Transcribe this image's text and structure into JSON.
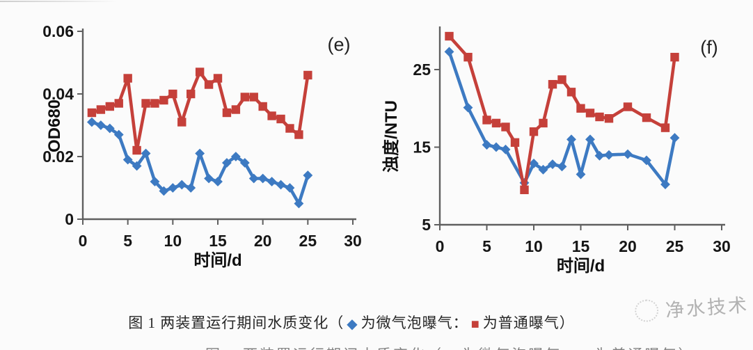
{
  "caption": {
    "prefix": "图 1 两装置运行期间水质变化（",
    "diamond_marker": "◆",
    "micro_label": "为微气泡曝气：",
    "square_marker": "■",
    "normal_label": "为普通曝气）"
  },
  "watermark": {
    "text": "净水技术"
  },
  "colors": {
    "micro_bubble_blue": "#3d7ac2",
    "normal_aeration_red": "#c5403a"
  },
  "chart_data": [
    {
      "type": "line",
      "panel_label": "(e)",
      "xlabel": "时间/d",
      "ylabel": "OD680",
      "xlim": [
        0,
        30
      ],
      "ylim": [
        0,
        0.06
      ],
      "xticks": [
        0,
        5,
        10,
        15,
        20,
        25,
        30
      ],
      "yticks": [
        0,
        0.02,
        0.04,
        0.06
      ],
      "ytick_labels": [
        "0",
        "0.02",
        "0.04",
        "0.06"
      ],
      "grid": false,
      "legend_position": "none",
      "series": [
        {
          "name": "微气泡曝气",
          "marker": "diamond",
          "color": "#3d7ac2",
          "x": [
            1,
            2,
            3,
            4,
            5,
            6,
            7,
            8,
            9,
            10,
            11,
            12,
            13,
            14,
            15,
            16,
            17,
            18,
            19,
            20,
            21,
            22,
            23,
            24,
            25
          ],
          "y": [
            0.031,
            0.03,
            0.029,
            0.027,
            0.019,
            0.017,
            0.021,
            0.012,
            0.009,
            0.01,
            0.011,
            0.01,
            0.021,
            0.013,
            0.012,
            0.018,
            0.02,
            0.018,
            0.013,
            0.013,
            0.012,
            0.011,
            0.01,
            0.005,
            0.014
          ]
        },
        {
          "name": "普通曝气",
          "marker": "square",
          "color": "#c5403a",
          "x": [
            1,
            2,
            3,
            4,
            5,
            6,
            7,
            8,
            9,
            10,
            11,
            12,
            13,
            14,
            15,
            16,
            17,
            18,
            19,
            20,
            21,
            22,
            23,
            24,
            25
          ],
          "y": [
            0.034,
            0.035,
            0.036,
            0.037,
            0.045,
            0.022,
            0.037,
            0.037,
            0.038,
            0.04,
            0.031,
            0.04,
            0.047,
            0.043,
            0.045,
            0.034,
            0.035,
            0.039,
            0.039,
            0.036,
            0.033,
            0.032,
            0.029,
            0.027,
            0.046
          ]
        }
      ]
    },
    {
      "type": "line",
      "panel_label": "(f)",
      "xlabel": "时间/d",
      "ylabel": "浊度/NTU",
      "xlim": [
        0,
        30
      ],
      "ylim": [
        5,
        30.2
      ],
      "xticks": [
        0,
        5,
        10,
        15,
        20,
        25,
        30
      ],
      "yticks": [
        5,
        15,
        25
      ],
      "ytick_labels": [
        "5",
        "15",
        "25"
      ],
      "grid": false,
      "legend_position": "none",
      "series": [
        {
          "name": "微气泡曝气",
          "marker": "diamond",
          "color": "#3d7ac2",
          "x": [
            1,
            3,
            5,
            6,
            7,
            9,
            10,
            11,
            12,
            13,
            14,
            15,
            16,
            17,
            18,
            20,
            22,
            24,
            25
          ],
          "y": [
            27.3,
            20.1,
            15.3,
            15.0,
            14.7,
            10.4,
            12.9,
            12.1,
            12.8,
            12.5,
            16.0,
            11.5,
            16.0,
            13.9,
            14.0,
            14.1,
            13.3,
            10.2,
            16.2
          ]
        },
        {
          "name": "普通曝气",
          "marker": "square",
          "color": "#c5403a",
          "x": [
            1,
            3,
            5,
            6,
            7,
            8,
            9,
            10,
            11,
            12,
            13,
            14,
            15,
            16,
            17,
            18,
            20,
            22,
            24,
            25
          ],
          "y": [
            29.3,
            26.6,
            18.5,
            18.1,
            17.6,
            15.6,
            9.5,
            17.0,
            18.1,
            23.1,
            23.7,
            22.1,
            20.0,
            19.4,
            18.9,
            18.7,
            20.2,
            18.8,
            17.5,
            26.6
          ]
        }
      ]
    }
  ]
}
